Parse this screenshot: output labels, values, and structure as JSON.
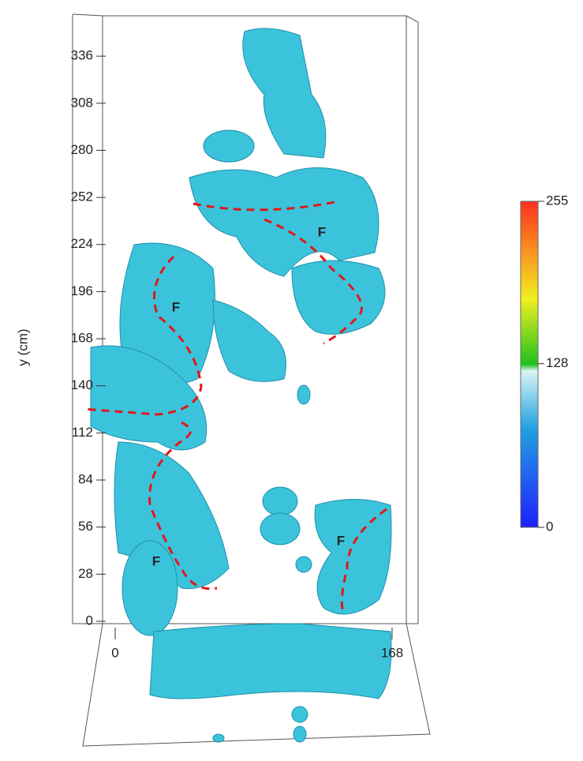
{
  "chart_data": {
    "type": "isosurface",
    "ylabel": "y (cm)",
    "ylim": [
      0,
      360
    ],
    "yticks": [
      0,
      28,
      56,
      84,
      112,
      140,
      168,
      196,
      224,
      252,
      280,
      308,
      336
    ],
    "xlim": [
      0,
      168
    ],
    "xticks": [
      0,
      168
    ],
    "clim": [
      0,
      255
    ],
    "cticks": [
      0,
      128,
      255
    ],
    "color": "#3cc3dc",
    "annotations": [
      "F",
      "F",
      "F",
      "F"
    ]
  }
}
